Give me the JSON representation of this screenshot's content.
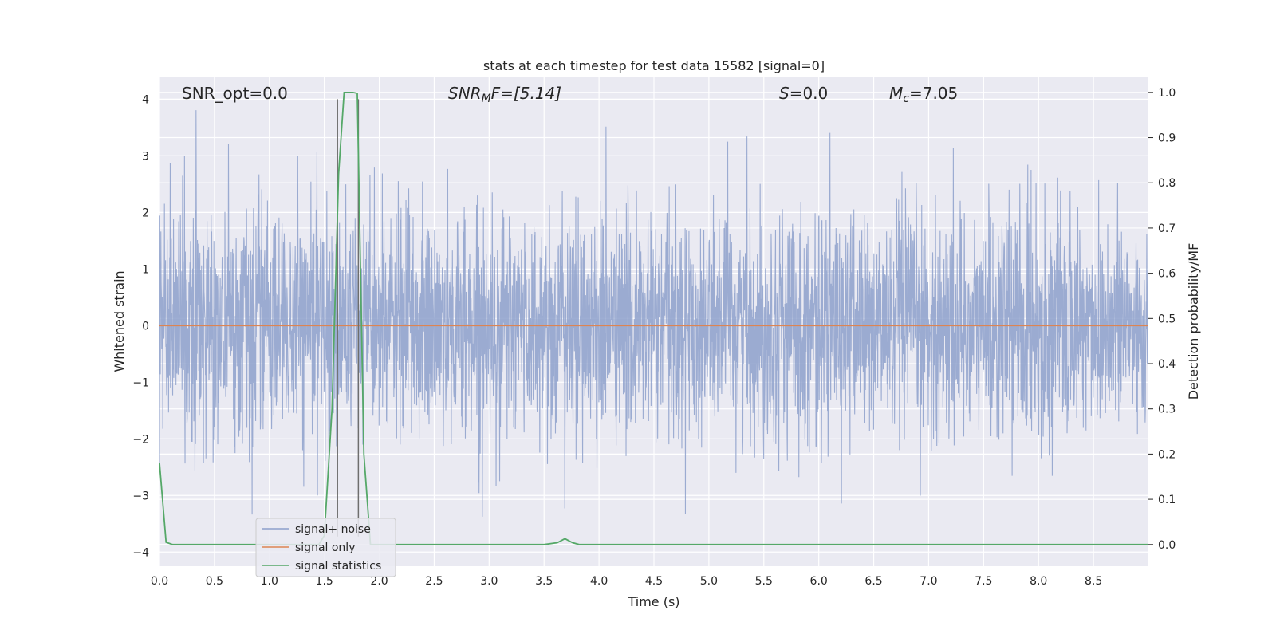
{
  "chart_data": {
    "type": "line",
    "title": "stats at each timestep for test data 15582 [signal=0]",
    "xlabel": "Time (s)",
    "ylabel": "Whitened strain",
    "y2label": "Detection probability/MF",
    "xlim": [
      0.0,
      9.0
    ],
    "ylim": [
      -4.25,
      4.4
    ],
    "y2lim": [
      -0.048,
      1.035
    ],
    "x_ticks": [
      0.0,
      0.5,
      1.0,
      1.5,
      2.0,
      2.5,
      3.0,
      3.5,
      4.0,
      4.5,
      5.0,
      5.5,
      6.0,
      6.5,
      7.0,
      7.5,
      8.0,
      8.5
    ],
    "x_tick_labels": [
      "0.0",
      "0.5",
      "1.0",
      "1.5",
      "2.0",
      "2.5",
      "3.0",
      "3.5",
      "4.0",
      "4.5",
      "5.0",
      "5.5",
      "6.0",
      "6.5",
      "7.0",
      "7.5",
      "8.0",
      "8.5"
    ],
    "y_ticks": [
      -4,
      -3,
      -2,
      -1,
      0,
      1,
      2,
      3,
      4
    ],
    "y_tick_labels": [
      "−4",
      "−3",
      "−2",
      "−1",
      "0",
      "1",
      "2",
      "3",
      "4"
    ],
    "y2_ticks": [
      0.0,
      0.1,
      0.2,
      0.3,
      0.4,
      0.5,
      0.6,
      0.7,
      0.8,
      0.9,
      1.0
    ],
    "y2_tick_labels": [
      "0.0",
      "0.1",
      "0.2",
      "0.3",
      "0.4",
      "0.5",
      "0.6",
      "0.7",
      "0.8",
      "0.9",
      "1.0"
    ],
    "grid": true,
    "annotations": {
      "snr_opt": "SNR_opt=0.0",
      "snr_mf_main": "SNR",
      "snr_mf_sub": "M",
      "snr_mf_rest": "F=[5.14]",
      "s_main": "S",
      "s_rest": "=0.0",
      "mc_main": "M",
      "mc_sub": "c",
      "mc_rest": "=7.05"
    },
    "vertical_lines": [
      1.62,
      1.81
    ],
    "series": [
      {
        "name": "signal+ noise",
        "color": "#8da0cb",
        "axis": "left",
        "description_level": "noise",
        "x_range": [
          0.0,
          9.0
        ],
        "mean": 0.0,
        "std": 1.0,
        "min": -3.95,
        "max": 4.0
      },
      {
        "name": "signal only",
        "color": "#dd8452",
        "axis": "left",
        "x": [
          0.0,
          9.0
        ],
        "y": [
          0.0,
          0.0
        ]
      },
      {
        "name": "signal statistics",
        "color": "#55a868",
        "axis": "right",
        "x": [
          0.0,
          0.06,
          0.12,
          0.5,
          1.0,
          1.45,
          1.5,
          1.57,
          1.63,
          1.68,
          1.72,
          1.76,
          1.8,
          1.86,
          1.92,
          2.0,
          2.5,
          3.0,
          3.5,
          3.62,
          3.69,
          3.76,
          3.82,
          4.0,
          5.0,
          6.0,
          7.0,
          8.0,
          9.0
        ],
        "y": [
          0.18,
          0.005,
          0.0,
          0.0,
          0.0,
          0.0,
          0.02,
          0.3,
          0.82,
          1.0,
          1.0,
          1.0,
          0.998,
          0.2,
          0.0,
          0.0,
          0.0,
          0.0,
          0.0,
          0.004,
          0.013,
          0.004,
          0.0,
          0.0,
          0.0,
          0.0,
          0.0,
          0.0,
          0.0
        ]
      }
    ],
    "legend": {
      "placement": "lower-left",
      "entries": [
        "signal+ noise",
        "signal only",
        "signal statistics"
      ]
    },
    "colors": {
      "plot_background": "#eaeaf2",
      "grid": "#ffffff",
      "vertical_line": "#6e6e6e"
    }
  }
}
